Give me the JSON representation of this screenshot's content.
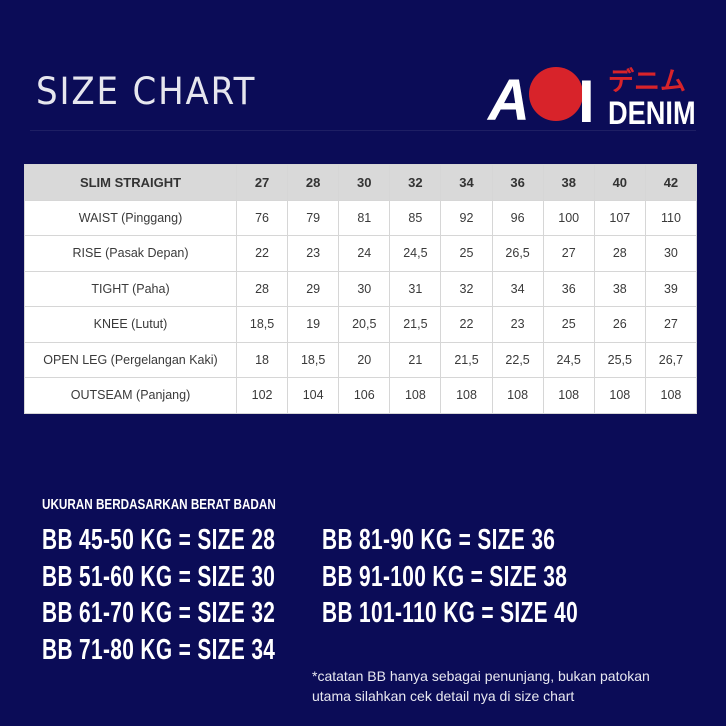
{
  "title": "SIZE CHART",
  "logo": {
    "main": "AOI",
    "japanese": "デニム",
    "sub": "DENIM",
    "accent": "#d8232a"
  },
  "table": {
    "corner": "SLIM STRAIGHT",
    "sizes": [
      "27",
      "28",
      "30",
      "32",
      "34",
      "36",
      "38",
      "40",
      "42"
    ],
    "rows": [
      {
        "label": "WAIST (Pinggang)",
        "values": [
          "76",
          "79",
          "81",
          "85",
          "92",
          "96",
          "100",
          "107",
          "110"
        ]
      },
      {
        "label": "RISE (Pasak Depan)",
        "values": [
          "22",
          "23",
          "24",
          "24,5",
          "25",
          "26,5",
          "27",
          "28",
          "30"
        ]
      },
      {
        "label": "TIGHT (Paha)",
        "values": [
          "28",
          "29",
          "30",
          "31",
          "32",
          "34",
          "36",
          "38",
          "39"
        ]
      },
      {
        "label": "KNEE (Lutut)",
        "values": [
          "18,5",
          "19",
          "20,5",
          "21,5",
          "22",
          "23",
          "25",
          "26",
          "27"
        ]
      },
      {
        "label": "OPEN LEG (Pergelangan Kaki)",
        "values": [
          "18",
          "18,5",
          "20",
          "21",
          "21,5",
          "22,5",
          "24,5",
          "25,5",
          "26,7"
        ]
      },
      {
        "label": "OUTSEAM (Panjang)",
        "values": [
          "102",
          "104",
          "106",
          "108",
          "108",
          "108",
          "108",
          "108",
          "108"
        ]
      }
    ]
  },
  "weight_guide": {
    "heading": "UKURAN BERDASARKAN BERAT BADAN",
    "left": [
      "BB 45-50 KG = SIZE 28",
      "BB 51-60 KG = SIZE 30",
      "BB 61-70 KG = SIZE 32",
      "BB 71-80 KG = SIZE 34"
    ],
    "right": [
      "BB 81-90 KG = SIZE 36",
      "BB 91-100 KG = SIZE 38",
      "BB 101-110 KG = SIZE 40"
    ]
  },
  "footnote": [
    "*catatan BB hanya sebagai penunjang, bukan patokan",
    "utama silahkan cek detail nya di size chart"
  ]
}
